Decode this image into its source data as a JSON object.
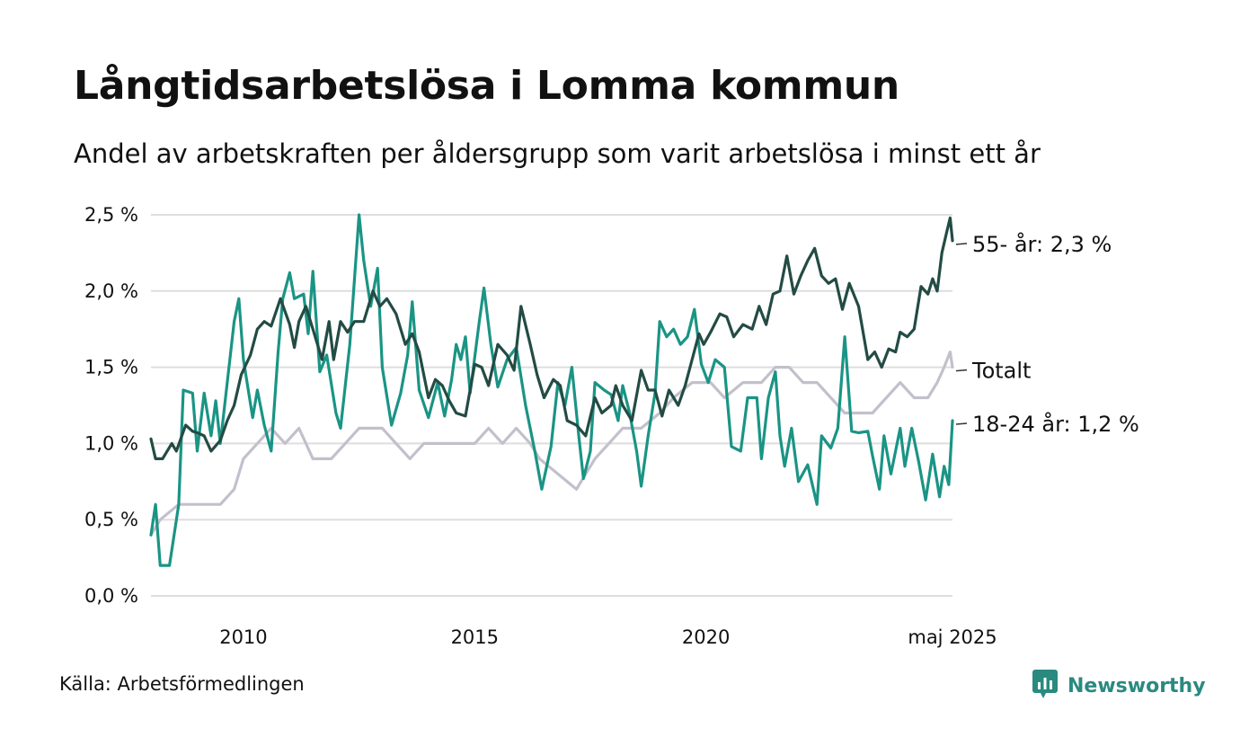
{
  "title": "Långtidsarbetslösa i Lomma kommun",
  "subtitle": "Andel av arbetskraften per åldersgrupp som varit arbetslösa i minst ett år",
  "source": "Källa: Arbetsförmedlingen",
  "brand": {
    "name": "Newsworthy",
    "icon": "newsworthy-logo-icon",
    "color": "#2a8a80"
  },
  "chart_data": {
    "type": "line",
    "title": "Långtidsarbetslösa i Lomma kommun",
    "subtitle": "Andel av arbetskraften per åldersgrupp som varit arbetslösa i minst ett år",
    "xlabel": "",
    "ylabel": "",
    "ylim": [
      0,
      2.5
    ],
    "xlim": [
      2008.0,
      2025.33
    ],
    "grid": true,
    "yticks": [
      {
        "value": 0.0,
        "label": "0,0 %"
      },
      {
        "value": 0.5,
        "label": "0,5 %"
      },
      {
        "value": 1.0,
        "label": "1,0 %"
      },
      {
        "value": 1.5,
        "label": "1,5 %"
      },
      {
        "value": 2.0,
        "label": "2,0 %"
      },
      {
        "value": 2.5,
        "label": "2,5 %"
      }
    ],
    "xticks": [
      {
        "value": 2010,
        "label": "2010"
      },
      {
        "value": 2015,
        "label": "2015"
      },
      {
        "value": 2020,
        "label": "2020"
      },
      {
        "value": 2025.33,
        "label": "maj 2025"
      }
    ],
    "series": [
      {
        "name": "Totalt",
        "end_label": "Totalt",
        "color": "#c3c0cc",
        "points": [
          [
            2008.0,
            0.4
          ],
          [
            2008.2,
            0.5
          ],
          [
            2008.6,
            0.6
          ],
          [
            2009.0,
            0.6
          ],
          [
            2009.5,
            0.6
          ],
          [
            2009.8,
            0.7
          ],
          [
            2010.0,
            0.9
          ],
          [
            2010.3,
            1.0
          ],
          [
            2010.6,
            1.1
          ],
          [
            2010.9,
            1.0
          ],
          [
            2011.2,
            1.1
          ],
          [
            2011.5,
            0.9
          ],
          [
            2011.9,
            0.9
          ],
          [
            2012.2,
            1.0
          ],
          [
            2012.5,
            1.1
          ],
          [
            2013.0,
            1.1
          ],
          [
            2013.3,
            1.0
          ],
          [
            2013.6,
            0.9
          ],
          [
            2013.9,
            1.0
          ],
          [
            2014.3,
            1.0
          ],
          [
            2014.7,
            1.0
          ],
          [
            2015.0,
            1.0
          ],
          [
            2015.3,
            1.1
          ],
          [
            2015.6,
            1.0
          ],
          [
            2015.9,
            1.1
          ],
          [
            2016.2,
            1.0
          ],
          [
            2016.4,
            0.9
          ],
          [
            2016.8,
            0.8
          ],
          [
            2017.2,
            0.7
          ],
          [
            2017.6,
            0.9
          ],
          [
            2017.9,
            1.0
          ],
          [
            2018.2,
            1.1
          ],
          [
            2018.6,
            1.1
          ],
          [
            2019.0,
            1.2
          ],
          [
            2019.3,
            1.3
          ],
          [
            2019.7,
            1.4
          ],
          [
            2020.1,
            1.4
          ],
          [
            2020.4,
            1.3
          ],
          [
            2020.8,
            1.4
          ],
          [
            2021.2,
            1.4
          ],
          [
            2021.5,
            1.5
          ],
          [
            2021.8,
            1.5
          ],
          [
            2022.1,
            1.4
          ],
          [
            2022.4,
            1.4
          ],
          [
            2022.7,
            1.3
          ],
          [
            2023.0,
            1.2
          ],
          [
            2023.3,
            1.2
          ],
          [
            2023.6,
            1.2
          ],
          [
            2023.9,
            1.3
          ],
          [
            2024.2,
            1.4
          ],
          [
            2024.5,
            1.3
          ],
          [
            2024.8,
            1.3
          ],
          [
            2025.0,
            1.4
          ],
          [
            2025.15,
            1.5
          ],
          [
            2025.28,
            1.6
          ],
          [
            2025.33,
            1.5
          ]
        ]
      },
      {
        "name": "18-24 år",
        "end_label": "18-24 år: 1,2 %",
        "color": "#1a9485",
        "points": [
          [
            2008.0,
            0.4
          ],
          [
            2008.1,
            0.6
          ],
          [
            2008.2,
            0.2
          ],
          [
            2008.4,
            0.2
          ],
          [
            2008.6,
            0.6
          ],
          [
            2008.7,
            1.35
          ],
          [
            2008.9,
            1.33
          ],
          [
            2009.0,
            0.95
          ],
          [
            2009.15,
            1.33
          ],
          [
            2009.3,
            1.05
          ],
          [
            2009.4,
            1.28
          ],
          [
            2009.5,
            1.0
          ],
          [
            2009.8,
            1.8
          ],
          [
            2009.9,
            1.95
          ],
          [
            2010.0,
            1.55
          ],
          [
            2010.2,
            1.17
          ],
          [
            2010.3,
            1.35
          ],
          [
            2010.45,
            1.12
          ],
          [
            2010.6,
            0.95
          ],
          [
            2010.75,
            1.6
          ],
          [
            2010.85,
            1.95
          ],
          [
            2011.0,
            2.12
          ],
          [
            2011.1,
            1.95
          ],
          [
            2011.3,
            1.98
          ],
          [
            2011.4,
            1.72
          ],
          [
            2011.5,
            2.13
          ],
          [
            2011.65,
            1.47
          ],
          [
            2011.8,
            1.58
          ],
          [
            2012.0,
            1.2
          ],
          [
            2012.1,
            1.1
          ],
          [
            2012.3,
            1.65
          ],
          [
            2012.5,
            2.5
          ],
          [
            2012.6,
            2.2
          ],
          [
            2012.75,
            1.9
          ],
          [
            2012.9,
            2.15
          ],
          [
            2013.0,
            1.5
          ],
          [
            2013.2,
            1.12
          ],
          [
            2013.4,
            1.33
          ],
          [
            2013.55,
            1.58
          ],
          [
            2013.65,
            1.93
          ],
          [
            2013.8,
            1.35
          ],
          [
            2014.0,
            1.17
          ],
          [
            2014.2,
            1.4
          ],
          [
            2014.35,
            1.18
          ],
          [
            2014.5,
            1.42
          ],
          [
            2014.6,
            1.65
          ],
          [
            2014.7,
            1.55
          ],
          [
            2014.8,
            1.7
          ],
          [
            2014.9,
            1.33
          ],
          [
            2015.1,
            1.8
          ],
          [
            2015.2,
            2.02
          ],
          [
            2015.35,
            1.65
          ],
          [
            2015.5,
            1.37
          ],
          [
            2015.7,
            1.55
          ],
          [
            2015.9,
            1.63
          ],
          [
            2016.1,
            1.25
          ],
          [
            2016.3,
            0.95
          ],
          [
            2016.45,
            0.7
          ],
          [
            2016.65,
            0.98
          ],
          [
            2016.8,
            1.4
          ],
          [
            2016.95,
            1.25
          ],
          [
            2017.1,
            1.5
          ],
          [
            2017.25,
            1.05
          ],
          [
            2017.35,
            0.77
          ],
          [
            2017.5,
            0.95
          ],
          [
            2017.6,
            1.4
          ],
          [
            2017.8,
            1.35
          ],
          [
            2017.95,
            1.32
          ],
          [
            2018.1,
            1.15
          ],
          [
            2018.2,
            1.38
          ],
          [
            2018.35,
            1.2
          ],
          [
            2018.5,
            0.95
          ],
          [
            2018.6,
            0.72
          ],
          [
            2018.75,
            1.05
          ],
          [
            2018.9,
            1.33
          ],
          [
            2019.0,
            1.8
          ],
          [
            2019.15,
            1.7
          ],
          [
            2019.3,
            1.75
          ],
          [
            2019.45,
            1.65
          ],
          [
            2019.6,
            1.7
          ],
          [
            2019.75,
            1.88
          ],
          [
            2019.9,
            1.52
          ],
          [
            2020.05,
            1.4
          ],
          [
            2020.2,
            1.55
          ],
          [
            2020.4,
            1.5
          ],
          [
            2020.55,
            0.98
          ],
          [
            2020.75,
            0.95
          ],
          [
            2020.9,
            1.3
          ],
          [
            2021.1,
            1.3
          ],
          [
            2021.2,
            0.9
          ],
          [
            2021.35,
            1.3
          ],
          [
            2021.5,
            1.47
          ],
          [
            2021.6,
            1.05
          ],
          [
            2021.7,
            0.85
          ],
          [
            2021.85,
            1.1
          ],
          [
            2022.0,
            0.75
          ],
          [
            2022.2,
            0.86
          ],
          [
            2022.4,
            0.6
          ],
          [
            2022.5,
            1.05
          ],
          [
            2022.7,
            0.97
          ],
          [
            2022.85,
            1.1
          ],
          [
            2023.0,
            1.7
          ],
          [
            2023.15,
            1.08
          ],
          [
            2023.3,
            1.07
          ],
          [
            2023.5,
            1.08
          ],
          [
            2023.6,
            0.92
          ],
          [
            2023.75,
            0.7
          ],
          [
            2023.85,
            1.05
          ],
          [
            2024.0,
            0.8
          ],
          [
            2024.2,
            1.1
          ],
          [
            2024.3,
            0.85
          ],
          [
            2024.45,
            1.1
          ],
          [
            2024.6,
            0.88
          ],
          [
            2024.75,
            0.63
          ],
          [
            2024.9,
            0.93
          ],
          [
            2025.05,
            0.65
          ],
          [
            2025.15,
            0.85
          ],
          [
            2025.25,
            0.73
          ],
          [
            2025.33,
            1.15
          ]
        ]
      },
      {
        "name": "55- år",
        "end_label": "55- år: 2,3 %",
        "color": "#234b44",
        "points": [
          [
            2008.0,
            1.03
          ],
          [
            2008.1,
            0.9
          ],
          [
            2008.25,
            0.9
          ],
          [
            2008.45,
            1.0
          ],
          [
            2008.55,
            0.95
          ],
          [
            2008.75,
            1.12
          ],
          [
            2008.9,
            1.08
          ],
          [
            2009.0,
            1.07
          ],
          [
            2009.15,
            1.05
          ],
          [
            2009.3,
            0.95
          ],
          [
            2009.5,
            1.02
          ],
          [
            2009.65,
            1.15
          ],
          [
            2009.8,
            1.25
          ],
          [
            2009.95,
            1.45
          ],
          [
            2010.15,
            1.58
          ],
          [
            2010.3,
            1.75
          ],
          [
            2010.45,
            1.8
          ],
          [
            2010.6,
            1.77
          ],
          [
            2010.8,
            1.95
          ],
          [
            2011.0,
            1.78
          ],
          [
            2011.1,
            1.63
          ],
          [
            2011.2,
            1.8
          ],
          [
            2011.35,
            1.9
          ],
          [
            2011.5,
            1.75
          ],
          [
            2011.7,
            1.55
          ],
          [
            2011.85,
            1.8
          ],
          [
            2011.95,
            1.55
          ],
          [
            2012.1,
            1.8
          ],
          [
            2012.25,
            1.73
          ],
          [
            2012.4,
            1.8
          ],
          [
            2012.6,
            1.8
          ],
          [
            2012.8,
            2.0
          ],
          [
            2012.95,
            1.9
          ],
          [
            2013.1,
            1.95
          ],
          [
            2013.3,
            1.85
          ],
          [
            2013.5,
            1.65
          ],
          [
            2013.65,
            1.72
          ],
          [
            2013.8,
            1.6
          ],
          [
            2014.0,
            1.3
          ],
          [
            2014.15,
            1.42
          ],
          [
            2014.3,
            1.38
          ],
          [
            2014.45,
            1.28
          ],
          [
            2014.6,
            1.2
          ],
          [
            2014.8,
            1.18
          ],
          [
            2015.0,
            1.52
          ],
          [
            2015.15,
            1.5
          ],
          [
            2015.3,
            1.38
          ],
          [
            2015.5,
            1.65
          ],
          [
            2015.7,
            1.58
          ],
          [
            2015.85,
            1.48
          ],
          [
            2016.0,
            1.9
          ],
          [
            2016.2,
            1.65
          ],
          [
            2016.35,
            1.45
          ],
          [
            2016.5,
            1.3
          ],
          [
            2016.7,
            1.42
          ],
          [
            2016.85,
            1.38
          ],
          [
            2017.0,
            1.15
          ],
          [
            2017.2,
            1.12
          ],
          [
            2017.4,
            1.05
          ],
          [
            2017.6,
            1.3
          ],
          [
            2017.75,
            1.2
          ],
          [
            2017.95,
            1.25
          ],
          [
            2018.05,
            1.38
          ],
          [
            2018.2,
            1.25
          ],
          [
            2018.4,
            1.15
          ],
          [
            2018.6,
            1.48
          ],
          [
            2018.75,
            1.35
          ],
          [
            2018.9,
            1.35
          ],
          [
            2019.05,
            1.18
          ],
          [
            2019.2,
            1.35
          ],
          [
            2019.4,
            1.25
          ],
          [
            2019.55,
            1.38
          ],
          [
            2019.7,
            1.55
          ],
          [
            2019.85,
            1.72
          ],
          [
            2019.95,
            1.65
          ],
          [
            2020.1,
            1.73
          ],
          [
            2020.3,
            1.85
          ],
          [
            2020.45,
            1.83
          ],
          [
            2020.6,
            1.7
          ],
          [
            2020.8,
            1.78
          ],
          [
            2021.0,
            1.75
          ],
          [
            2021.15,
            1.9
          ],
          [
            2021.3,
            1.78
          ],
          [
            2021.45,
            1.98
          ],
          [
            2021.6,
            2.0
          ],
          [
            2021.75,
            2.23
          ],
          [
            2021.9,
            1.98
          ],
          [
            2022.05,
            2.1
          ],
          [
            2022.2,
            2.2
          ],
          [
            2022.35,
            2.28
          ],
          [
            2022.5,
            2.1
          ],
          [
            2022.65,
            2.05
          ],
          [
            2022.8,
            2.08
          ],
          [
            2022.95,
            1.88
          ],
          [
            2023.1,
            2.05
          ],
          [
            2023.3,
            1.9
          ],
          [
            2023.5,
            1.55
          ],
          [
            2023.65,
            1.6
          ],
          [
            2023.8,
            1.5
          ],
          [
            2023.95,
            1.62
          ],
          [
            2024.1,
            1.6
          ],
          [
            2024.2,
            1.73
          ],
          [
            2024.35,
            1.7
          ],
          [
            2024.5,
            1.75
          ],
          [
            2024.65,
            2.03
          ],
          [
            2024.8,
            1.98
          ],
          [
            2024.9,
            2.08
          ],
          [
            2025.0,
            2.0
          ],
          [
            2025.1,
            2.25
          ],
          [
            2025.2,
            2.38
          ],
          [
            2025.28,
            2.48
          ],
          [
            2025.33,
            2.33
          ]
        ]
      }
    ]
  }
}
